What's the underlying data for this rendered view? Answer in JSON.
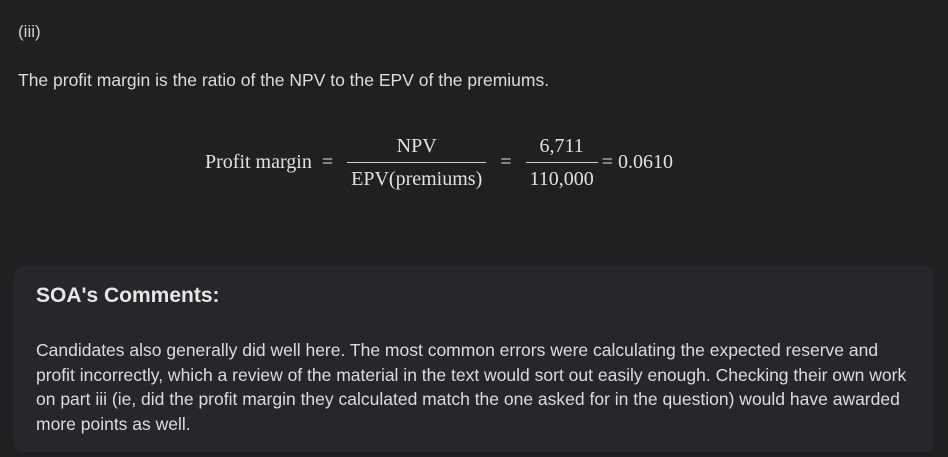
{
  "part_label": "(iii)",
  "intro_text": "The profit margin is the ratio of the NPV to the EPV of the premiums.",
  "equation": {
    "lhs": "Profit margin",
    "eq": "=",
    "frac1_num": "NPV",
    "frac1_den": "EPV(premiums)",
    "frac2_num": "6,711",
    "frac2_den": "110,000",
    "result": "= 0.0610"
  },
  "comments": {
    "title": "SOA's Comments:",
    "body": "Candidates also generally did well here. The most common errors were calculating the expected reserve and profit incorrectly, which a review of the material in the text would sort out easily enough. Checking their own work on part iii (ie, did the profit margin they calculated match the one asked for in the question) would have awarded more points as well."
  }
}
